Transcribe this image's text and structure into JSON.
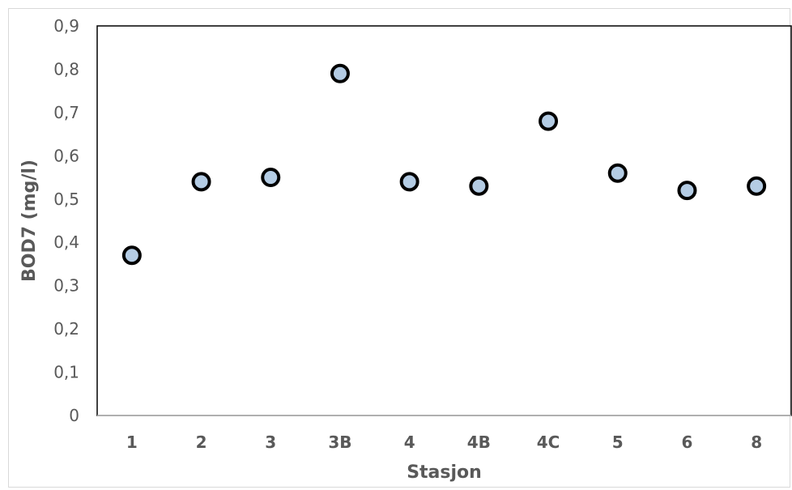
{
  "chart_data": {
    "type": "scatter",
    "title": "",
    "xlabel": "Stasjon",
    "ylabel": "BOD7 (mg/l)",
    "categories": [
      "1",
      "2",
      "3",
      "3B",
      "4",
      "4B",
      "4C",
      "5",
      "6",
      "8"
    ],
    "values": [
      0.37,
      0.54,
      0.55,
      0.79,
      0.54,
      0.53,
      0.68,
      0.56,
      0.52,
      0.53
    ],
    "ylim": [
      0,
      0.9
    ],
    "yticks": [
      "0",
      "0,1",
      "0,2",
      "0,3",
      "0,4",
      "0,5",
      "0,6",
      "0,7",
      "0,8",
      "0,9"
    ],
    "grid": false,
    "legend": "none",
    "marker_fill": "#b4cce4",
    "marker_edge": "#000000"
  }
}
